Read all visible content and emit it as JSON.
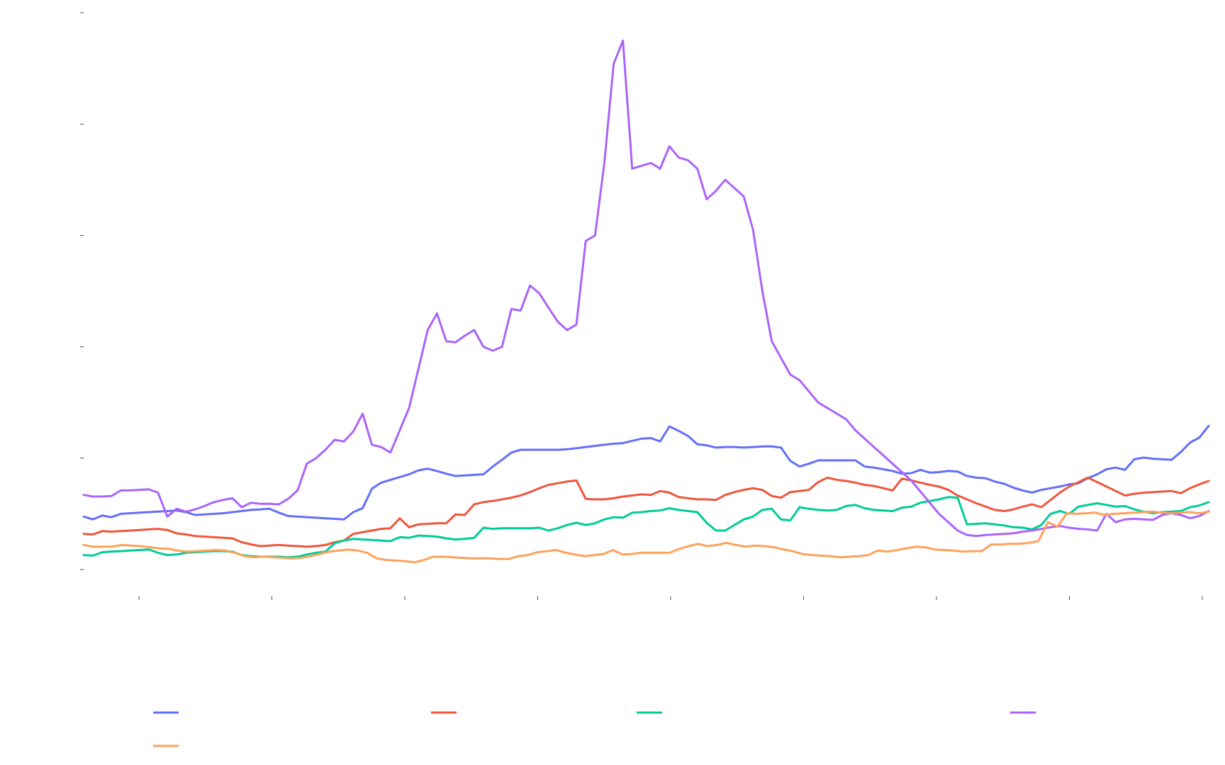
{
  "chart_data": {
    "type": "line",
    "title": "",
    "xlabel": "",
    "ylabel": "",
    "grid": false,
    "legend_placement": "bottom",
    "x_tick_count": 9,
    "y_tick_count": 6,
    "xlim": [
      0,
      120
    ],
    "ylim": [
      0,
      100
    ],
    "series": [
      {
        "color": "#636efa",
        "values": [
          9.5,
          9.0,
          9.7,
          9.4,
          10.0,
          10.1,
          10.2,
          10.3,
          10.4,
          10.5,
          10.6,
          10.3,
          9.8,
          9.9,
          10.0,
          10.1,
          10.3,
          10.5,
          10.7,
          10.8,
          10.9,
          10.2,
          9.6,
          9.5,
          9.4,
          9.3,
          9.2,
          9.1,
          9.0,
          10.3,
          11.0,
          14.5,
          15.6,
          16.1,
          16.6,
          17.1,
          17.8,
          18.1,
          17.7,
          17.2,
          16.8,
          16.9,
          17.0,
          17.1,
          18.5,
          19.7,
          21.0,
          21.5,
          21.5,
          21.5,
          21.5,
          21.5,
          21.6,
          21.8,
          22.0,
          22.2,
          22.4,
          22.6,
          22.7,
          23.1,
          23.5,
          23.6,
          23.0,
          25.7,
          24.9,
          24.0,
          22.5,
          22.3,
          21.9,
          22.0,
          22.0,
          21.9,
          22.0,
          22.1,
          22.1,
          21.9,
          19.5,
          18.5,
          19.0,
          19.6,
          19.6,
          19.6,
          19.6,
          19.6,
          18.5,
          18.3,
          18.0,
          17.7,
          17.2,
          17.3,
          17.9,
          17.4,
          17.5,
          17.7,
          17.6,
          16.8,
          16.5,
          16.4,
          15.8,
          15.4,
          14.7,
          14.2,
          13.8,
          14.3,
          14.6,
          14.9,
          15.3,
          15.5,
          16.4,
          17.1,
          18.0,
          18.3,
          17.9,
          19.8,
          20.1,
          19.9,
          19.8,
          19.7,
          21.1,
          22.8,
          23.7,
          25.8
        ],
        "name": ""
      },
      {
        "color": "#ef553b",
        "values": [
          6.4,
          6.3,
          6.9,
          6.8,
          6.9,
          7.0,
          7.1,
          7.2,
          7.3,
          7.1,
          6.5,
          6.3,
          6.0,
          5.9,
          5.8,
          5.7,
          5.6,
          4.9,
          4.5,
          4.2,
          4.3,
          4.4,
          4.3,
          4.2,
          4.1,
          4.2,
          4.4,
          4.9,
          5.2,
          6.4,
          6.7,
          7.0,
          7.3,
          7.4,
          9.2,
          7.6,
          8.1,
          8.2,
          8.3,
          8.3,
          9.9,
          9.8,
          11.7,
          12.1,
          12.3,
          12.6,
          12.9,
          13.3,
          13.9,
          14.6,
          15.2,
          15.5,
          15.8,
          16.0,
          12.7,
          12.6,
          12.6,
          12.8,
          13.1,
          13.3,
          13.5,
          13.4,
          14.1,
          13.8,
          13.0,
          12.8,
          12.6,
          12.6,
          12.5,
          13.4,
          13.9,
          14.3,
          14.6,
          14.3,
          13.2,
          12.9,
          13.9,
          14.1,
          14.3,
          15.7,
          16.5,
          16.1,
          15.9,
          15.6,
          15.2,
          15.0,
          14.6,
          14.2,
          16.3,
          16.0,
          15.6,
          15.2,
          14.9,
          14.3,
          13.3,
          12.6,
          11.9,
          11.3,
          10.7,
          10.5,
          10.8,
          11.3,
          11.7,
          11.2,
          12.5,
          13.8,
          14.9,
          15.7,
          16.5,
          15.7,
          14.9,
          14.1,
          13.3,
          13.6,
          13.8,
          13.9,
          14.0,
          14.1,
          13.7,
          14.6,
          15.3,
          15.9
        ]
      },
      {
        "color": "#00cc96",
        "values": [
          2.6,
          2.5,
          3.1,
          3.2,
          3.3,
          3.4,
          3.5,
          3.6,
          3.0,
          2.6,
          2.7,
          3.0,
          3.1,
          3.2,
          3.3,
          3.3,
          3.2,
          2.6,
          2.4,
          2.3,
          2.3,
          2.3,
          2.2,
          2.3,
          2.7,
          3.0,
          3.2,
          4.7,
          5.2,
          5.5,
          5.4,
          5.3,
          5.2,
          5.1,
          5.8,
          5.7,
          6.1,
          6.0,
          5.9,
          5.6,
          5.4,
          5.5,
          5.7,
          7.5,
          7.3,
          7.4,
          7.4,
          7.4,
          7.4,
          7.5,
          7.0,
          7.4,
          8.0,
          8.4,
          8.0,
          8.3,
          9.0,
          9.4,
          9.3,
          10.2,
          10.3,
          10.5,
          10.6,
          11.0,
          10.7,
          10.5,
          10.3,
          8.4,
          7.0,
          7.0,
          8.0,
          9.0,
          9.5,
          10.7,
          10.9,
          9.0,
          8.8,
          11.2,
          10.9,
          10.7,
          10.6,
          10.7,
          11.4,
          11.6,
          11.0,
          10.7,
          10.6,
          10.5,
          11.1,
          11.3,
          12.0,
          12.3,
          12.6,
          13.0,
          12.9,
          8.1,
          8.2,
          8.3,
          8.1,
          7.9,
          7.6,
          7.5,
          7.2,
          8.0,
          10.0,
          10.5,
          10.0,
          11.3,
          11.6,
          11.9,
          11.6,
          11.3,
          11.4,
          10.8,
          10.4,
          10.1,
          10.3,
          10.4,
          10.5,
          11.2,
          11.5,
          12.1
        ]
      },
      {
        "color": "#ab63fa",
        "values": [
          13.4,
          13.1,
          13.1,
          13.2,
          14.2,
          14.2,
          14.3,
          14.4,
          13.8,
          9.5,
          10.9,
          10.4,
          10.8,
          11.4,
          12.1,
          12.5,
          12.8,
          11.2,
          12.0,
          11.8,
          11.8,
          11.7,
          12.7,
          14.2,
          19.0,
          20.0,
          21.5,
          23.3,
          23.0,
          24.8,
          28.0,
          22.4,
          22.0,
          21.0,
          25.0,
          29.0,
          36.0,
          43.0,
          46.0,
          41.0,
          40.8,
          42.0,
          43.0,
          40.0,
          39.3,
          40.0,
          46.8,
          46.5,
          51.0,
          49.6,
          47.0,
          44.5,
          43.0,
          44.0,
          59.0,
          60.0,
          73.0,
          90.8,
          95.0,
          72.0,
          72.5,
          73.0,
          72.0,
          76.0,
          74.0,
          73.5,
          72.0,
          66.5,
          68.0,
          70.0,
          68.5,
          67.0,
          61.0,
          50.0,
          41.0,
          38.0,
          35.0,
          34.0,
          32.0,
          30.0,
          29.0,
          28.0,
          27.0,
          25.0,
          23.5,
          22.0,
          20.5,
          19.0,
          17.5,
          16.0,
          14.0,
          12.0,
          10.0,
          8.5,
          7.0,
          6.2,
          6.0,
          6.2,
          6.3,
          6.4,
          6.5,
          6.8,
          7.0,
          7.3,
          7.6,
          7.8,
          7.5,
          7.3,
          7.2,
          7.0,
          10.0,
          8.5,
          9.0,
          9.1,
          9.0,
          8.9,
          9.8,
          10.1,
          9.8,
          9.2,
          9.6,
          10.5
        ]
      },
      {
        "color": "#ffa15a",
        "values": [
          4.4,
          4.1,
          4.1,
          4.1,
          4.4,
          4.3,
          4.2,
          4.0,
          3.8,
          3.7,
          3.4,
          3.2,
          3.3,
          3.4,
          3.5,
          3.4,
          3.0,
          2.4,
          2.2,
          2.3,
          2.2,
          2.1,
          2.0,
          2.1,
          2.4,
          2.8,
          3.2,
          3.4,
          3.6,
          3.4,
          3.0,
          2.0,
          1.7,
          1.6,
          1.5,
          1.3,
          1.7,
          2.3,
          2.3,
          2.2,
          2.1,
          2.0,
          2.0,
          2.0,
          1.9,
          1.9,
          2.4,
          2.6,
          3.1,
          3.3,
          3.5,
          3.0,
          2.7,
          2.4,
          2.6,
          2.8,
          3.5,
          2.7,
          2.8,
          3.0,
          3.0,
          3.0,
          3.0,
          3.7,
          4.2,
          4.6,
          4.2,
          4.4,
          4.8,
          4.4,
          4.1,
          4.3,
          4.2,
          4.0,
          3.6,
          3.3,
          2.8,
          2.6,
          2.5,
          2.4,
          2.2,
          2.3,
          2.4,
          2.6,
          3.4,
          3.2,
          3.5,
          3.8,
          4.1,
          4.0,
          3.6,
          3.5,
          3.4,
          3.2,
          3.3,
          3.3,
          4.5,
          4.5,
          4.6,
          4.6,
          4.8,
          5.1,
          8.5,
          7.7,
          10.1,
          10.0,
          10.1,
          10.2,
          9.8,
          10.0,
          10.1,
          10.2,
          10.3,
          10.4,
          10.2,
          10.1,
          10.2,
          10.3,
          10.1,
          10.4
        ]
      }
    ]
  }
}
